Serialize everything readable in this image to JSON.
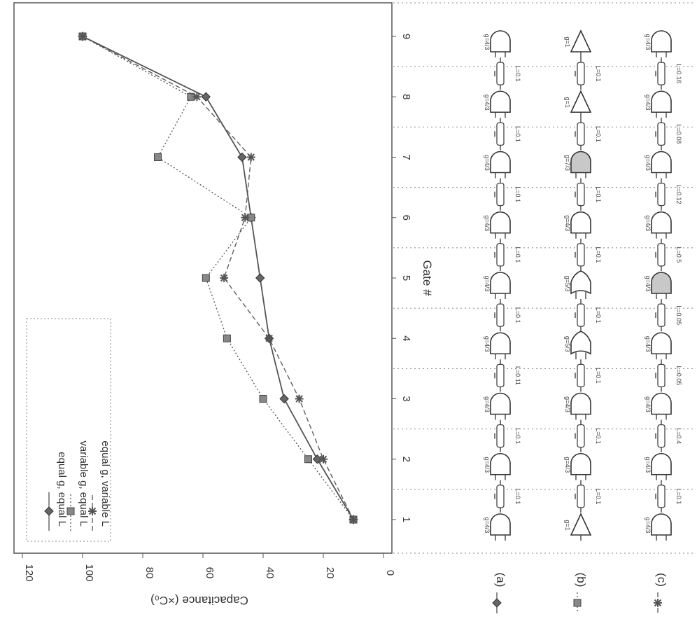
{
  "chart_data": {
    "type": "line",
    "orientation": "rotated 90 degrees clockwise",
    "title": "",
    "xlabel": "Gate #",
    "ylabel": "Capacitance (×C₀)",
    "x": [
      1,
      2,
      3,
      4,
      5,
      6,
      7,
      8,
      9
    ],
    "xlim": [
      0.5,
      9.5
    ],
    "ylim": [
      0,
      120
    ],
    "yticks": [
      0,
      20,
      40,
      60,
      80,
      100,
      120
    ],
    "xtick_labels": [
      "1",
      "2",
      "3",
      "4",
      "5",
      "6",
      "7",
      "8",
      "9"
    ],
    "grid": true,
    "legend_placement": "top-right",
    "series": [
      {
        "name": "equal g, equal L",
        "marker": "diamond",
        "line": "solid",
        "values": [
          10,
          22,
          33,
          38,
          41,
          44,
          47,
          59,
          100
        ]
      },
      {
        "name": "variable g, equal L",
        "marker": "square",
        "line": "dotted",
        "values": [
          10,
          25,
          40,
          52,
          59,
          44,
          75,
          64,
          100
        ]
      },
      {
        "name": "equal g, variable L",
        "marker": "asterisk",
        "line": "dashed",
        "values": [
          10,
          20,
          28,
          38,
          53,
          46,
          44,
          62,
          100
        ]
      }
    ]
  },
  "legend": {
    "entries": [
      "equal g, equal L",
      "variable g, equal L",
      "equal g, variable L"
    ]
  },
  "rows": [
    {
      "tag": "(a)",
      "gates": [
        {
          "type": "nand",
          "g": "g=4/3"
        },
        {
          "type": "nand",
          "g": "g=4/3"
        },
        {
          "type": "nand",
          "g": "g=4/3"
        },
        {
          "type": "nand",
          "g": "g=4/3"
        },
        {
          "type": "nand",
          "g": "g=4/3"
        },
        {
          "type": "nand",
          "g": "g=4/3"
        },
        {
          "type": "nand",
          "g": "g=4/3"
        },
        {
          "type": "nand",
          "g": "g=4/3"
        },
        {
          "type": "nand",
          "g": "g=4/3"
        }
      ],
      "wires": [
        "L=0.1",
        "L=0.1",
        "L=0.11",
        "L=0.1",
        "L=0.1",
        "L=0.1",
        "L=0.1",
        "L=0.1"
      ]
    },
    {
      "tag": "(b)",
      "gates": [
        {
          "type": "inv",
          "g": "g=1"
        },
        {
          "type": "nand",
          "g": "g=4/3"
        },
        {
          "type": "nand",
          "g": "g=4/3"
        },
        {
          "type": "nor",
          "g": "g=5/3"
        },
        {
          "type": "nor",
          "g": "g=5/3"
        },
        {
          "type": "nand",
          "g": "g=4/3"
        },
        {
          "type": "nand",
          "g": "g=7/3",
          "shaded": true
        },
        {
          "type": "inv",
          "g": "g=1"
        },
        {
          "type": "inv",
          "g": "g=1"
        }
      ],
      "wires": [
        "L=0.1",
        "L=0.1",
        "L=0.1",
        "L=0.1",
        "L=0.1",
        "L=0.1",
        "L=0.1",
        "L=0.1"
      ]
    },
    {
      "tag": "(c)",
      "gates": [
        {
          "type": "nand",
          "g": "g=4/3"
        },
        {
          "type": "nand",
          "g": "g=4/3"
        },
        {
          "type": "nand",
          "g": "g=4/3"
        },
        {
          "type": "nand",
          "g": "g=4/3"
        },
        {
          "type": "nand",
          "g": "g=4/3",
          "shaded": true
        },
        {
          "type": "nand",
          "g": "g=4/3"
        },
        {
          "type": "nand",
          "g": "g=4/3"
        },
        {
          "type": "nand",
          "g": "g=4/3"
        },
        {
          "type": "nand",
          "g": "g=4/3"
        }
      ],
      "wires": [
        "L=0.1",
        "L=0.4",
        "L=0.05",
        "L=0.05",
        "L=0.5",
        "L=0.12",
        "L=0.08",
        "L=0.16"
      ]
    }
  ]
}
